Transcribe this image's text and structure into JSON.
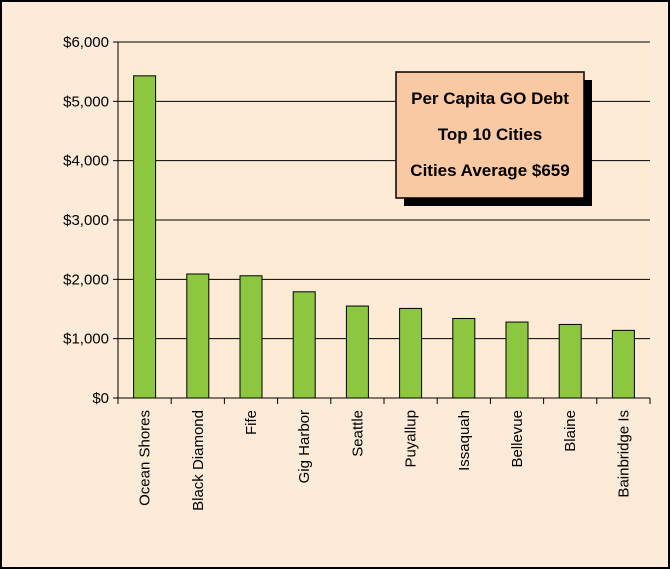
{
  "chart_data": {
    "type": "bar",
    "title_lines": [
      "Per Capita GO Debt",
      "Top 10 Cities",
      "Cities Average $659"
    ],
    "categories": [
      "Ocean Shores",
      "Black Diamond",
      "Fife",
      "Gig Harbor",
      "Seattle",
      "Puyallup",
      "Issaquah",
      "Bellevue",
      "Blaine",
      "Bainbridge Is"
    ],
    "values": [
      5430,
      2090,
      2060,
      1790,
      1550,
      1510,
      1340,
      1280,
      1240,
      1140
    ],
    "ylim": [
      0,
      6000
    ],
    "yticks": [
      0,
      1000,
      2000,
      3000,
      4000,
      5000,
      6000
    ],
    "ytick_labels": [
      "$0",
      "$1,000",
      "$2,000",
      "$3,000",
      "$4,000",
      "$5,000",
      "$6,000"
    ],
    "grid": true,
    "colors": {
      "bar": "#8dc63f",
      "bar_edge": "#000000",
      "plot_bg": "#fdebd6",
      "grid": "#000000",
      "title_box": "#f9c9a3"
    }
  }
}
